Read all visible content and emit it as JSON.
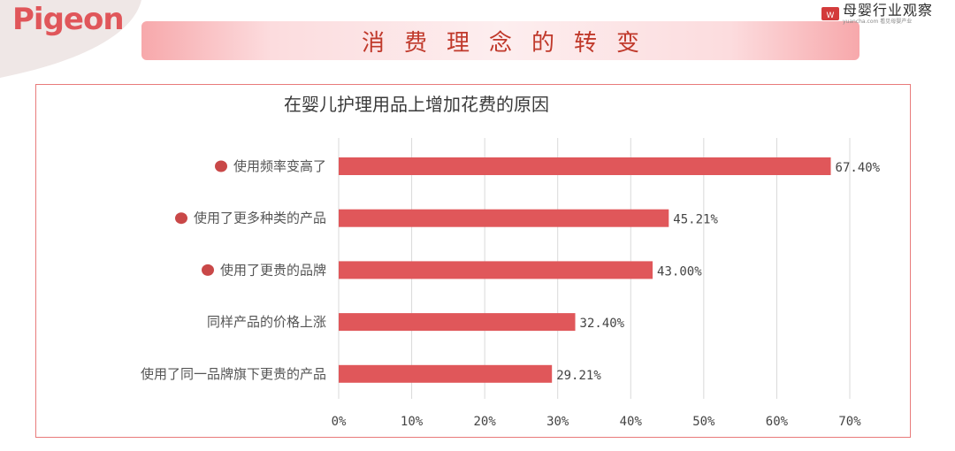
{
  "header": {
    "brand": "Pigeon",
    "slide_title": "消费理念的转变",
    "partner_name": "母婴行业观察",
    "partner_sub": "yuancha.com 看见母婴产业"
  },
  "colors": {
    "accent": "#e0575a",
    "bullet": "#c94848",
    "banner": "#fcdcde",
    "grid": "#d9d9d9"
  },
  "chart_data": {
    "type": "bar",
    "orientation": "horizontal",
    "title": "在婴儿护理用品上增加花费的原因",
    "categories": [
      "使用频率变高了",
      "使用了更多种类的产品",
      "使用了更贵的品牌",
      "同样产品的价格上涨",
      "使用了同一品牌旗下更贵的产品"
    ],
    "values": [
      67.4,
      45.21,
      43.0,
      32.4,
      29.21
    ],
    "value_labels": [
      "67.40%",
      "45.21%",
      "43.00%",
      "32.40%",
      "29.21%"
    ],
    "bullets": [
      true,
      true,
      true,
      false,
      false
    ],
    "xlim": [
      0,
      70
    ],
    "xticks": [
      0,
      10,
      20,
      30,
      40,
      50,
      60,
      70
    ],
    "xtick_labels": [
      "0%",
      "10%",
      "20%",
      "30%",
      "40%",
      "50%",
      "60%",
      "70%"
    ],
    "grid": true,
    "legend": "none"
  }
}
